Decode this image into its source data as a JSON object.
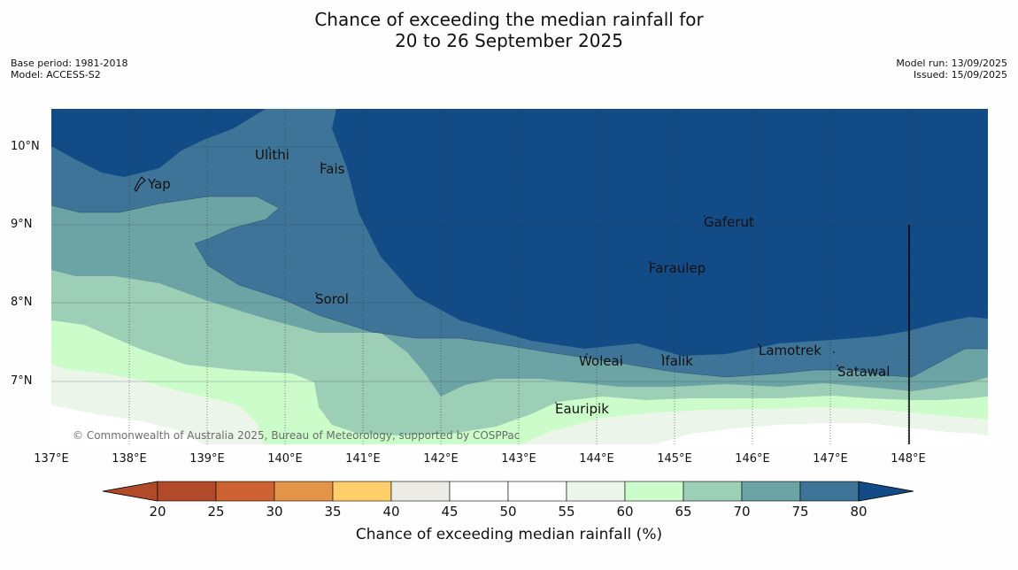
{
  "title": {
    "line1": "Chance of exceeding the median rainfall for",
    "line2": "20 to 26 September 2025"
  },
  "meta": {
    "base_period": "Base period: 1981-2018",
    "model": "Model: ACCESS-S2",
    "model_run": "Model run: 13/09/2025",
    "issued": "Issued: 15/09/2025"
  },
  "copyright": "© Commonwealth of Australia 2025, Bureau of Meteorology, supported by COSPPac",
  "lat_ticks": [
    "10°N",
    "9°N",
    "8°N",
    "7°N"
  ],
  "lon_ticks": [
    "137°E",
    "138°E",
    "139°E",
    "140°E",
    "141°E",
    "142°E",
    "143°E",
    "144°E",
    "145°E",
    "146°E",
    "147°E",
    "148°E"
  ],
  "places": [
    {
      "name": "Ulithi"
    },
    {
      "name": "Fais"
    },
    {
      "name": "Yap"
    },
    {
      "name": "Gaferut"
    },
    {
      "name": "Faraulep"
    },
    {
      "name": "Sorol"
    },
    {
      "name": "Lamotrek"
    },
    {
      "name": "Woleai"
    },
    {
      "name": "Ifalik"
    },
    {
      "name": "Satawal"
    },
    {
      "name": "Eauripik"
    }
  ],
  "colorbar": {
    "ticks": [
      "20",
      "25",
      "30",
      "35",
      "40",
      "45",
      "50",
      "55",
      "60",
      "65",
      "70",
      "75",
      "80"
    ],
    "colors": [
      "#b04a28",
      "#cf6232",
      "#e39448",
      "#fece6a",
      "#ecebe6",
      "#ffffff",
      "#ffffff",
      "#ecf5ea",
      "#ccfcca",
      "#9ccfb6",
      "#6ca3a4",
      "#3e7497",
      "#134b87"
    ],
    "title": "Chance of exceeding median rainfall (%)"
  }
}
